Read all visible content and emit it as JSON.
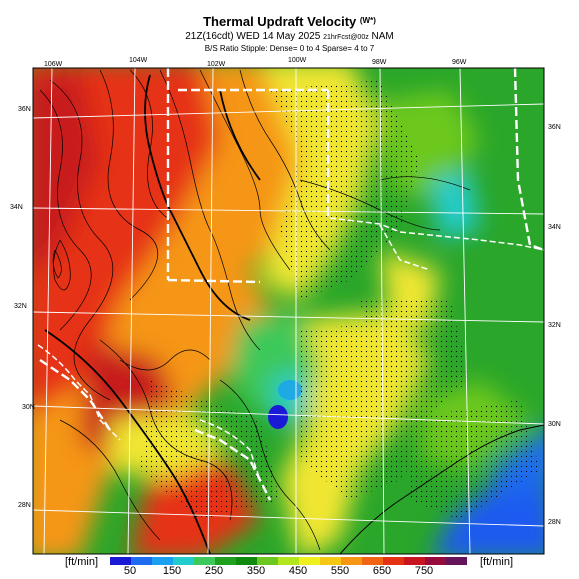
{
  "header": {
    "title": "Thermal Updraft Velocity",
    "title_unit": "(W*)",
    "subtitle_main": "21Z(16cdt) WED 14 May 2025",
    "subtitle_small": "21hrFcst@00z",
    "subtitle_model": "NAM",
    "subtitle2": "B/S Ratio Stipple: Dense= 0 to 4 Sparse= 4 to 7"
  },
  "axes": {
    "lon_labels": [
      "106W",
      "104W",
      "102W",
      "100W",
      "98W",
      "96W"
    ],
    "lat_labels_left": [
      "36N",
      "34N",
      "32N",
      "30N",
      "28N"
    ],
    "lat_labels_right": [
      "36N",
      "34N",
      "32N",
      "30N",
      "28N"
    ]
  },
  "colorbar": {
    "unit_left": "[ft/min]",
    "unit_right": "[ft/min]",
    "tick_labels": [
      "50",
      "150",
      "250",
      "350",
      "450",
      "550",
      "650",
      "750"
    ],
    "colors": [
      "#1a1ad6",
      "#1e6cf0",
      "#19a0f0",
      "#22cccc",
      "#3cc85a",
      "#1fa01f",
      "#0f8a0f",
      "#6cc81e",
      "#b4e61e",
      "#f0f01e",
      "#f5c814",
      "#f59614",
      "#f06414",
      "#e63214",
      "#c8141e",
      "#960a3c",
      "#64145a"
    ]
  },
  "map_colors": {
    "blue": "#1e5af0",
    "green": "#1ea01e",
    "yellow": "#f0e632",
    "orange": "#f59614",
    "red": "#e63214",
    "darkred": "#c81e1e"
  }
}
